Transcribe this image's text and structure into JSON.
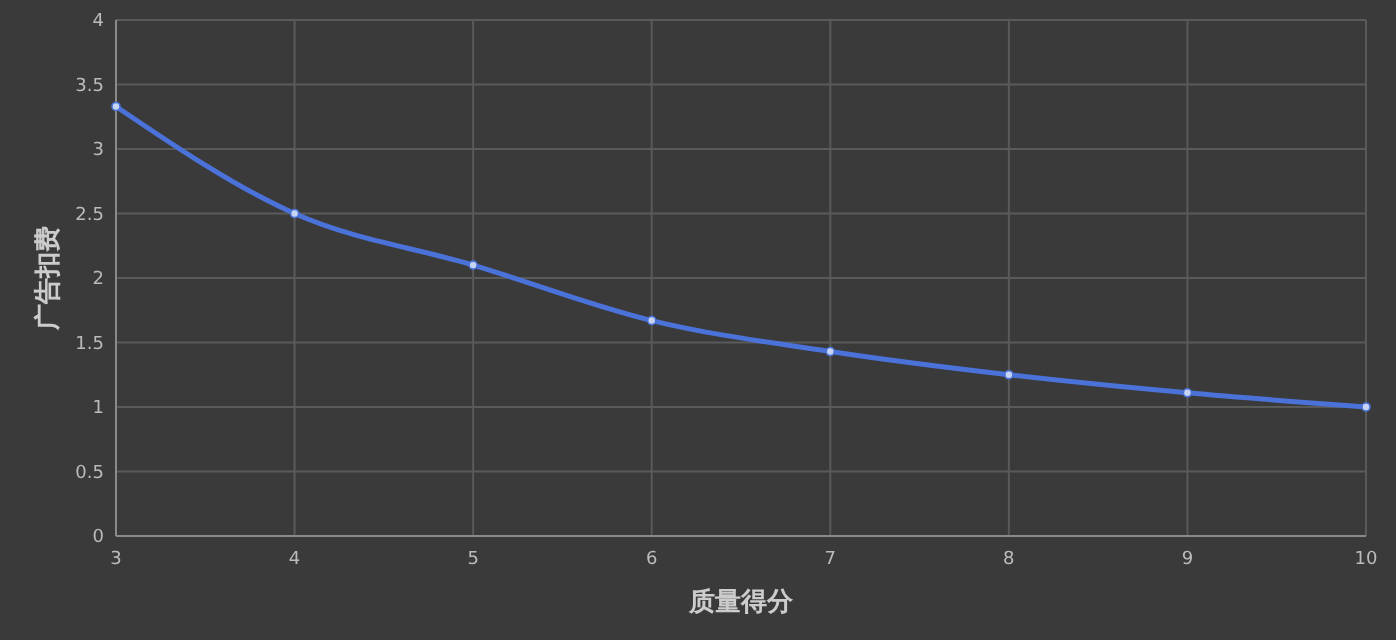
{
  "chart_data": {
    "type": "line",
    "xlabel": "质量得分",
    "ylabel": "广告扣费",
    "x": [
      3,
      4,
      5,
      6,
      7,
      8,
      9,
      10
    ],
    "series": [
      {
        "color": "#4a72d8",
        "values": [
          3.33,
          2.5,
          2.1,
          1.67,
          1.43,
          1.25,
          1.11,
          1.0
        ]
      }
    ],
    "xlim": [
      3,
      10
    ],
    "xticks": [
      3,
      4,
      5,
      6,
      7,
      8,
      9,
      10
    ],
    "ylim": [
      0,
      4
    ],
    "yticks": [
      0,
      0.5,
      1,
      1.5,
      2,
      2.5,
      3,
      3.5,
      4
    ],
    "grid": true,
    "marker": "circle"
  }
}
